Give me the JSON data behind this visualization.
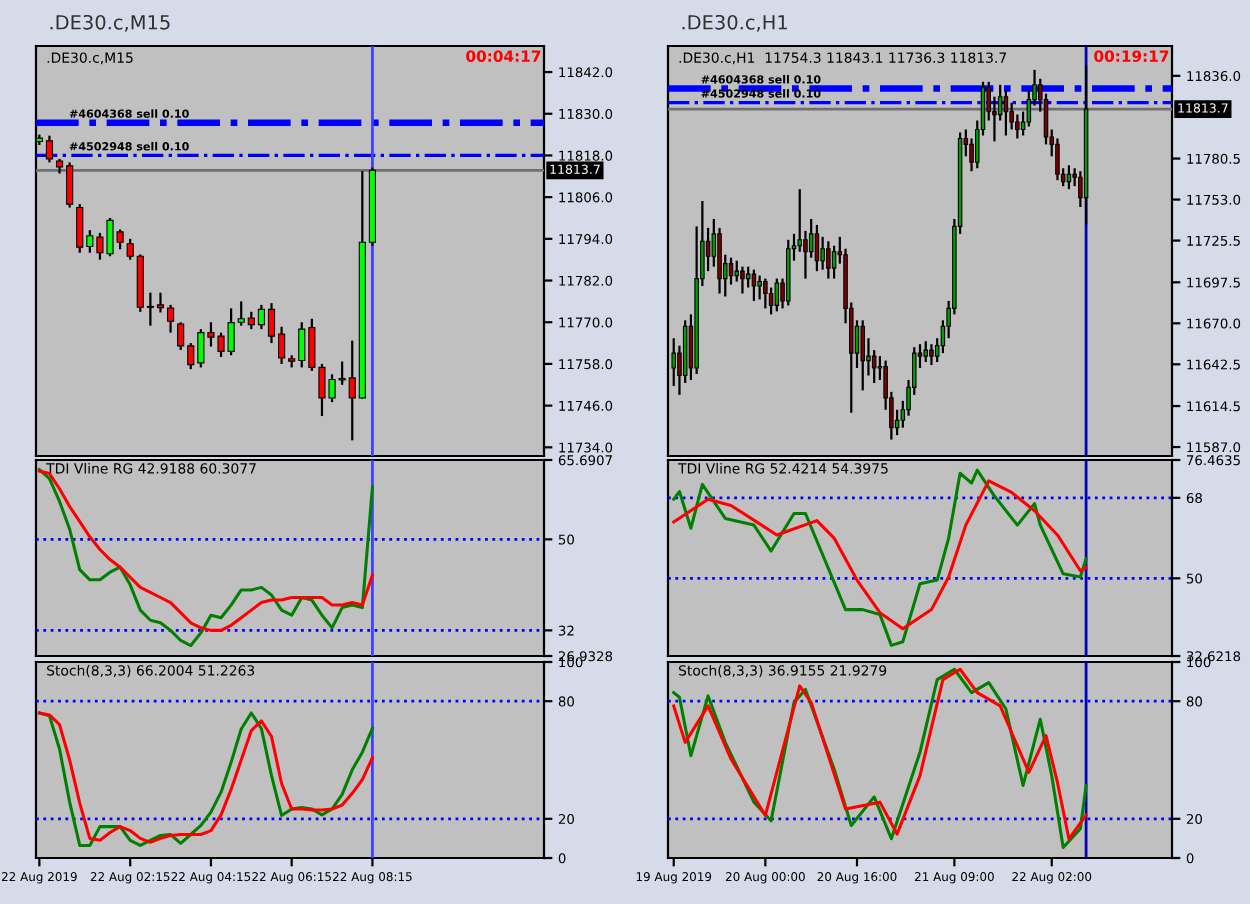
{
  "chart_data": [
    {
      "type": "candlestick",
      "title": ".DE30.c,M15",
      "subtitle": ".DE30.c,M15",
      "annotations": [
        "00:04:17"
      ],
      "x": [
        "2019-08-22T00:00",
        "2019-08-22T00:15",
        "2019-08-22T00:30",
        "2019-08-22T00:45",
        "2019-08-22T01:00",
        "2019-08-22T01:15",
        "2019-08-22T01:30",
        "2019-08-22T01:45",
        "2019-08-22T02:00",
        "2019-08-22T02:15",
        "2019-08-22T02:30",
        "2019-08-22T02:45",
        "2019-08-22T03:00",
        "2019-08-22T03:15",
        "2019-08-22T03:30",
        "2019-08-22T03:45",
        "2019-08-22T04:00",
        "2019-08-22T04:15",
        "2019-08-22T04:30",
        "2019-08-22T04:45",
        "2019-08-22T05:00",
        "2019-08-22T05:15",
        "2019-08-22T05:30",
        "2019-08-22T05:45",
        "2019-08-22T06:00",
        "2019-08-22T06:15",
        "2019-08-22T06:30",
        "2019-08-22T06:45",
        "2019-08-22T07:00",
        "2019-08-22T07:15",
        "2019-08-22T07:30",
        "2019-08-22T07:45",
        "2019-08-22T08:00",
        "2019-08-22T08:15"
      ],
      "ohlc": [
        [
          11822,
          11824,
          11821,
          11823
        ],
        [
          11822.2,
          11823.7,
          11816,
          11817
        ],
        [
          11816.4,
          11817,
          11812.8,
          11814.7
        ],
        [
          11815,
          11816,
          11803,
          11804
        ],
        [
          11803,
          11804,
          11790,
          11791.6
        ],
        [
          11791.8,
          11796.5,
          11790,
          11794.9
        ],
        [
          11794.5,
          11795.7,
          11788,
          11790
        ],
        [
          11789.7,
          11800,
          11789,
          11799.3
        ],
        [
          11796,
          11796.7,
          11791,
          11793
        ],
        [
          11792.6,
          11794,
          11788,
          11789
        ],
        [
          11789,
          11789.5,
          11773,
          11774.3
        ],
        [
          11774.3,
          11778.5,
          11769,
          11774.3
        ],
        [
          11775,
          11778.5,
          11772.8,
          11774.2
        ],
        [
          11774.1,
          11775,
          11767,
          11770.3
        ],
        [
          11769.5,
          11770,
          11762,
          11763.2
        ],
        [
          11763.2,
          11764,
          11756.5,
          11757.8
        ],
        [
          11758.3,
          11768,
          11757,
          11767
        ],
        [
          11767,
          11770,
          11763,
          11765.7
        ],
        [
          11766,
          11767,
          11760,
          11761.6
        ],
        [
          11761.6,
          11774,
          11760.5,
          11769.9
        ],
        [
          11770,
          11776,
          11769,
          11771
        ],
        [
          11771.2,
          11773,
          11768,
          11769.3
        ],
        [
          11769.3,
          11775,
          11768,
          11773.7
        ],
        [
          11773.7,
          11775.5,
          11764,
          11766
        ],
        [
          11766.6,
          11768.7,
          11758,
          11759.7
        ],
        [
          11759.5,
          11760.5,
          11757,
          11758.8
        ],
        [
          11759,
          11770,
          11757,
          11768
        ],
        [
          11768.5,
          11771,
          11756,
          11757
        ],
        [
          11757,
          11758,
          11743,
          11748.2
        ],
        [
          11748.2,
          11755,
          11747,
          11753.5
        ],
        [
          11753.4,
          11758.7,
          11752,
          11753.8
        ],
        [
          11754,
          11764.7,
          11736,
          11748.2
        ],
        [
          11748.2,
          11813.5,
          11748,
          11793
        ],
        [
          11793,
          11814.5,
          11792,
          11813.7
        ]
      ],
      "xlim": [
        "2019-08-21T23:55",
        "2019-08-22T12:30"
      ],
      "ylim": [
        11731.5,
        11849.5
      ],
      "yticks": [
        {
          "value": 11734,
          "label": "11734.0"
        },
        {
          "value": 11746,
          "label": "11746.0"
        },
        {
          "value": 11758,
          "label": "11758.0"
        },
        {
          "value": 11770,
          "label": "11770.0"
        },
        {
          "value": 11782,
          "label": "11782.0"
        },
        {
          "value": 11794,
          "label": "11794.0"
        },
        {
          "value": 11806,
          "label": "11806.0"
        },
        {
          "value": 11818,
          "label": "11818.0"
        },
        {
          "value": 11830,
          "label": "11830.0"
        },
        {
          "value": 11842,
          "label": "11842.0"
        }
      ],
      "ref_lines": [
        {
          "axis": "y",
          "value": 11827.4,
          "label": "#4604368 sell 0.10",
          "color": "#0000ff",
          "line_style": "dashdot"
        },
        {
          "axis": "y",
          "value": 11818.0,
          "label": "#4502948 sell 0.10",
          "color": "#0000ff",
          "line_style": "dashdot"
        },
        {
          "axis": "y",
          "value": 11813.7,
          "label": "11813.7",
          "color": "#707070",
          "line_style": "solid"
        },
        {
          "axis": "x",
          "value": "2019-08-22T08:15",
          "color": "#4040ff",
          "line_style": "solid"
        }
      ],
      "tick_labels": "y"
    },
    {
      "type": "line",
      "title": "TDI Vline RG 42.9188 60.3077",
      "x": [
        "2019-08-22T00:00",
        "2019-08-22T00:15",
        "2019-08-22T00:30",
        "2019-08-22T00:45",
        "2019-08-22T01:00",
        "2019-08-22T01:15",
        "2019-08-22T01:30",
        "2019-08-22T01:45",
        "2019-08-22T02:00",
        "2019-08-22T02:15",
        "2019-08-22T02:30",
        "2019-08-22T02:45",
        "2019-08-22T03:00",
        "2019-08-22T03:15",
        "2019-08-22T03:30",
        "2019-08-22T03:45",
        "2019-08-22T04:00",
        "2019-08-22T04:15",
        "2019-08-22T04:30",
        "2019-08-22T04:45",
        "2019-08-22T05:00",
        "2019-08-22T05:15",
        "2019-08-22T05:30",
        "2019-08-22T05:45",
        "2019-08-22T06:00",
        "2019-08-22T06:15",
        "2019-08-22T06:30",
        "2019-08-22T06:45",
        "2019-08-22T07:00",
        "2019-08-22T07:15",
        "2019-08-22T07:30",
        "2019-08-22T07:45",
        "2019-08-22T08:00",
        "2019-08-22T08:15"
      ],
      "series": [
        {
          "color": "#008000",
          "values": [
            63.8,
            62,
            57.5,
            52,
            44,
            42,
            42,
            43.5,
            44.5,
            41,
            36,
            34,
            33.5,
            32,
            30,
            29,
            31.5,
            35,
            34.5,
            37,
            40,
            40,
            40.5,
            39,
            36,
            35,
            38.5,
            38,
            35,
            32.5,
            36.5,
            37,
            36.5,
            60.3
          ]
        },
        {
          "color": "#ff0000",
          "values": [
            63.5,
            63,
            60,
            56.5,
            53.5,
            50.5,
            48,
            46,
            44.5,
            42.5,
            40.5,
            39.5,
            38.5,
            37.5,
            35.5,
            33.5,
            32.5,
            32,
            32,
            33,
            34.5,
            36,
            37.5,
            38,
            38,
            38.5,
            38.5,
            38.5,
            38.5,
            37,
            37,
            37.5,
            37,
            42.9
          ]
        }
      ],
      "xlim": [
        "2019-08-21T23:55",
        "2019-08-22T12:30"
      ],
      "ylim": [
        26.9328,
        65.6907
      ],
      "yticks": [
        26.9328,
        32,
        50,
        65.6907
      ],
      "ref_lines": [
        {
          "axis": "y",
          "value": 50,
          "color": "#0000ff",
          "line_style": "dotted"
        },
        {
          "axis": "y",
          "value": 32,
          "color": "#0000ff",
          "line_style": "dotted"
        },
        {
          "axis": "x",
          "value": "2019-08-22T08:15",
          "color": "#4040ff",
          "line_style": "solid"
        }
      ],
      "tick_labels": "y"
    },
    {
      "type": "line",
      "title": "Stoch(8,3,3) 66.2004 51.2263",
      "x": [
        "2019-08-22T00:00",
        "2019-08-22T00:15",
        "2019-08-22T00:30",
        "2019-08-22T00:45",
        "2019-08-22T01:00",
        "2019-08-22T01:15",
        "2019-08-22T01:30",
        "2019-08-22T01:45",
        "2019-08-22T02:00",
        "2019-08-22T02:15",
        "2019-08-22T02:30",
        "2019-08-22T02:45",
        "2019-08-22T03:00",
        "2019-08-22T03:15",
        "2019-08-22T03:30",
        "2019-08-22T03:45",
        "2019-08-22T04:00",
        "2019-08-22T04:15",
        "2019-08-22T04:30",
        "2019-08-22T04:45",
        "2019-08-22T05:00",
        "2019-08-22T05:15",
        "2019-08-22T05:30",
        "2019-08-22T05:45",
        "2019-08-22T06:00",
        "2019-08-22T06:15",
        "2019-08-22T06:30",
        "2019-08-22T06:45",
        "2019-08-22T07:00",
        "2019-08-22T07:15",
        "2019-08-22T07:30",
        "2019-08-22T07:45",
        "2019-08-22T08:00",
        "2019-08-22T08:15"
      ],
      "series": [
        {
          "color": "#008000",
          "values": [
            74,
            72.5,
            55.6,
            28.5,
            6.4,
            6.4,
            16,
            16,
            16,
            9,
            6.4,
            9,
            11.5,
            12,
            7.5,
            12,
            16.6,
            23.4,
            33.6,
            48.8,
            65.8,
            74,
            66,
            42,
            21.7,
            25,
            25.8,
            25,
            22,
            25,
            32.5,
            45,
            54,
            66.2
          ]
        },
        {
          "color": "#ff0000",
          "values": [
            74,
            73,
            68,
            50,
            28,
            10,
            9,
            13,
            16,
            14,
            10,
            8,
            10,
            11.5,
            12,
            12,
            12,
            14,
            22,
            35,
            50,
            65,
            70,
            62,
            38,
            25,
            25,
            24.5,
            24.5,
            25,
            27,
            33,
            40,
            51.2
          ]
        }
      ],
      "xlim": [
        "2019-08-21T23:55",
        "2019-08-22T12:30"
      ],
      "ylim": [
        0,
        100
      ],
      "yticks": [
        0,
        20,
        80,
        100
      ],
      "xticks": [
        {
          "value": "2019-08-22T00:00",
          "label": "22 Aug 2019"
        },
        {
          "value": "2019-08-22T02:15",
          "label": "22 Aug 02:15"
        },
        {
          "value": "2019-08-22T04:15",
          "label": "22 Aug 04:15"
        },
        {
          "value": "2019-08-22T06:15",
          "label": "22 Aug 06:15"
        },
        {
          "value": "2019-08-22T08:15",
          "label": "22 Aug 08:15"
        }
      ],
      "ref_lines": [
        {
          "axis": "y",
          "value": 80,
          "color": "#0000ff",
          "line_style": "dotted"
        },
        {
          "axis": "y",
          "value": 20,
          "color": "#0000ff",
          "line_style": "dotted"
        },
        {
          "axis": "x",
          "value": "2019-08-22T08:15",
          "color": "#4040ff",
          "line_style": "solid"
        }
      ]
    },
    {
      "type": "candlestick",
      "title": ".DE30.c,H1",
      "subtitle": ".DE30.c,H1  11754.3 11843.1 11736.3 11813.7",
      "annotations": [
        "00:19:17"
      ],
      "x": [
        "2019-08-19T08:00",
        "2019-08-19T09:00",
        "2019-08-19T10:00",
        "2019-08-19T11:00",
        "2019-08-19T12:00",
        "2019-08-19T13:00",
        "2019-08-19T14:00",
        "2019-08-19T15:00",
        "2019-08-19T16:00",
        "2019-08-19T17:00",
        "2019-08-19T18:00",
        "2019-08-19T19:00",
        "2019-08-19T20:00",
        "2019-08-19T21:00",
        "2019-08-19T22:00",
        "2019-08-19T23:00",
        "2019-08-20T00:00",
        "2019-08-20T01:00",
        "2019-08-20T02:00",
        "2019-08-20T03:00",
        "2019-08-20T04:00",
        "2019-08-20T05:00",
        "2019-08-20T06:00",
        "2019-08-20T07:00",
        "2019-08-20T08:00",
        "2019-08-20T09:00",
        "2019-08-20T10:00",
        "2019-08-20T11:00",
        "2019-08-20T12:00",
        "2019-08-20T13:00",
        "2019-08-20T14:00",
        "2019-08-20T15:00",
        "2019-08-20T16:00",
        "2019-08-20T17:00",
        "2019-08-20T18:00",
        "2019-08-20T19:00",
        "2019-08-20T20:00",
        "2019-08-20T21:00",
        "2019-08-20T22:00",
        "2019-08-20T23:00",
        "2019-08-21T00:00",
        "2019-08-21T01:00",
        "2019-08-21T02:00",
        "2019-08-21T03:00",
        "2019-08-21T04:00",
        "2019-08-21T05:00",
        "2019-08-21T06:00",
        "2019-08-21T07:00",
        "2019-08-21T08:00",
        "2019-08-21T09:00",
        "2019-08-21T10:00",
        "2019-08-21T11:00",
        "2019-08-21T12:00",
        "2019-08-21T13:00",
        "2019-08-21T14:00",
        "2019-08-21T15:00",
        "2019-08-21T16:00",
        "2019-08-21T17:00",
        "2019-08-21T18:00",
        "2019-08-21T19:00",
        "2019-08-21T20:00",
        "2019-08-21T21:00",
        "2019-08-21T22:00",
        "2019-08-21T23:00",
        "2019-08-22T00:00",
        "2019-08-22T01:00",
        "2019-08-22T02:00",
        "2019-08-22T03:00",
        "2019-08-22T04:00",
        "2019-08-22T05:00",
        "2019-08-22T06:00",
        "2019-08-22T07:00",
        "2019-08-22T08:00"
      ],
      "ohlc": [
        [
          11640,
          11660,
          11628,
          11650
        ],
        [
          11650,
          11655,
          11622,
          11635
        ],
        [
          11635,
          11672,
          11630,
          11668
        ],
        [
          11668,
          11676,
          11632,
          11640
        ],
        [
          11640,
          11735,
          11636,
          11700
        ],
        [
          11700,
          11752,
          11695,
          11725
        ],
        [
          11725,
          11734,
          11705,
          11715
        ],
        [
          11715,
          11740,
          11708,
          11730
        ],
        [
          11730,
          11734,
          11690,
          11700
        ],
        [
          11700,
          11716,
          11688,
          11710
        ],
        [
          11710,
          11714,
          11696,
          11702
        ],
        [
          11702,
          11712,
          11698,
          11705
        ],
        [
          11705,
          11708,
          11690,
          11700
        ],
        [
          11700,
          11708,
          11694,
          11703
        ],
        [
          11703,
          11706,
          11685,
          11695
        ],
        [
          11695,
          11702,
          11686,
          11698
        ],
        [
          11698,
          11700,
          11680,
          11690
        ],
        [
          11690,
          11694,
          11676,
          11682
        ],
        [
          11682,
          11700,
          11678,
          11697
        ],
        [
          11697,
          11700,
          11680,
          11685
        ],
        [
          11685,
          11726,
          11682,
          11720
        ],
        [
          11720,
          11730,
          11712,
          11722
        ],
        [
          11722,
          11760,
          11718,
          11726
        ],
        [
          11726,
          11732,
          11700,
          11718
        ],
        [
          11718,
          11740,
          11714,
          11730
        ],
        [
          11730,
          11736,
          11705,
          11712
        ],
        [
          11712,
          11728,
          11706,
          11720
        ],
        [
          11720,
          11725,
          11700,
          11707
        ],
        [
          11707,
          11722,
          11700,
          11718
        ],
        [
          11718,
          11728,
          11710,
          11716
        ],
        [
          11716,
          11720,
          11670,
          11680
        ],
        [
          11680,
          11684,
          11610,
          11650
        ],
        [
          11650,
          11672,
          11640,
          11668
        ],
        [
          11668,
          11672,
          11625,
          11645
        ],
        [
          11645,
          11660,
          11635,
          11648
        ],
        [
          11648,
          11652,
          11630,
          11640
        ],
        [
          11640,
          11648,
          11632,
          11641
        ],
        [
          11641,
          11645,
          11612,
          11620
        ],
        [
          11620,
          11624,
          11592,
          11600
        ],
        [
          11600,
          11612,
          11595,
          11605
        ],
        [
          11605,
          11618,
          11600,
          11612
        ],
        [
          11612,
          11632,
          11608,
          11627
        ],
        [
          11627,
          11654,
          11622,
          11650
        ],
        [
          11650,
          11656,
          11640,
          11648
        ],
        [
          11648,
          11658,
          11644,
          11652
        ],
        [
          11652,
          11656,
          11642,
          11648
        ],
        [
          11648,
          11660,
          11644,
          11655
        ],
        [
          11655,
          11672,
          11650,
          11668
        ],
        [
          11668,
          11685,
          11660,
          11680
        ],
        [
          11680,
          11740,
          11676,
          11735
        ],
        [
          11735,
          11798,
          11730,
          11794
        ],
        [
          11794,
          11800,
          11782,
          11790
        ],
        [
          11790,
          11794,
          11772,
          11778
        ],
        [
          11778,
          11806,
          11774,
          11800
        ],
        [
          11800,
          11832,
          11796,
          11828
        ],
        [
          11828,
          11832,
          11806,
          11812
        ],
        [
          11812,
          11822,
          11792,
          11810
        ],
        [
          11810,
          11830,
          11806,
          11822
        ],
        [
          11822,
          11826,
          11796,
          11812
        ],
        [
          11812,
          11818,
          11800,
          11805
        ],
        [
          11805,
          11810,
          11794,
          11800
        ],
        [
          11800,
          11812,
          11796,
          11805
        ],
        [
          11805,
          11826,
          11802,
          11820
        ],
        [
          11820,
          11840,
          11816,
          11830
        ],
        [
          11830,
          11834,
          11812,
          11820
        ],
        [
          11820,
          11824,
          11790,
          11795
        ],
        [
          11795,
          11800,
          11782,
          11790
        ],
        [
          11790,
          11794,
          11766,
          11770
        ],
        [
          11770,
          11774,
          11762,
          11765
        ],
        [
          11765,
          11776,
          11760,
          11770
        ],
        [
          11770,
          11774,
          11762,
          11768
        ],
        [
          11768,
          11772,
          11748,
          11754.3
        ],
        [
          11754.3,
          11843.1,
          11736.3,
          11813.7
        ]
      ],
      "xlim": [
        "2019-08-19T07:00",
        "2019-08-22T23:00"
      ],
      "ylim": [
        11581,
        11856
      ],
      "yticks": [
        {
          "value": 11587,
          "label": "11587.0"
        },
        11614.5,
        11642.5,
        {
          "value": 11670,
          "label": "11670.0"
        },
        11697.5,
        11725.5,
        {
          "value": 11753,
          "label": "11753.0"
        },
        11780.5,
        {
          "value": 11836,
          "label": "11836.0"
        }
      ],
      "ref_lines": [
        {
          "axis": "y",
          "value": 11827.5,
          "label": "#4604368 sell 0.10",
          "color": "#0000ff",
          "line_style": "dashdot"
        },
        {
          "axis": "y",
          "value": 11818.0,
          "label": "#4502948 sell 0.10",
          "color": "#0000ff",
          "line_style": "dashdot"
        },
        {
          "axis": "y",
          "value": 11813.7,
          "label": "11813.7",
          "color": "#707070",
          "line_style": "solid"
        },
        {
          "axis": "x",
          "value": "2019-08-22T08:00",
          "color": "#0000c0",
          "line_style": "solid"
        }
      ],
      "tick_labels": "y"
    },
    {
      "type": "line",
      "title": "TDI Vline RG 52.4214 54.3975",
      "series": [
        {
          "color": "#008000",
          "x": [
            "2019-08-19T08:00",
            "2019-08-19T09:00",
            "2019-08-19T11:00",
            "2019-08-19T13:00",
            "2019-08-19T17:00",
            "2019-08-19T22:00",
            "2019-08-20T01:00",
            "2019-08-20T05:00",
            "2019-08-20T07:00",
            "2019-08-20T14:00",
            "2019-08-20T17:00",
            "2019-08-20T20:00",
            "2019-08-20T22:00",
            "2019-08-21T00:00",
            "2019-08-21T03:00",
            "2019-08-21T06:00",
            "2019-08-21T08:00",
            "2019-08-21T10:00",
            "2019-08-21T12:00",
            "2019-08-21T13:00",
            "2019-08-21T16:00",
            "2019-08-21T20:00",
            "2019-08-21T23:00",
            "2019-08-22T00:00",
            "2019-08-22T04:00",
            "2019-08-22T07:00",
            "2019-08-22T08:00"
          ],
          "values": [
            67.7,
            69.4,
            61.2,
            71,
            63.4,
            61.9,
            56.1,
            64.5,
            64.5,
            43,
            43,
            41.9,
            35,
            35.8,
            48.8,
            49.6,
            59,
            73.5,
            71.3,
            74.2,
            68.4,
            61.9,
            66.7,
            61.9,
            51,
            50.3,
            54.4
          ]
        },
        {
          "color": "#ff0000",
          "x": [
            "2019-08-19T08:00",
            "2019-08-19T14:00",
            "2019-08-19T18:00",
            "2019-08-20T02:00",
            "2019-08-20T09:00",
            "2019-08-20T12:00",
            "2019-08-20T16:00",
            "2019-08-20T20:00",
            "2019-08-21T00:00",
            "2019-08-21T05:00",
            "2019-08-21T08:00",
            "2019-08-21T11:00",
            "2019-08-21T15:00",
            "2019-08-21T19:00",
            "2019-08-21T23:00",
            "2019-08-22T03:00",
            "2019-08-22T07:00",
            "2019-08-22T08:00"
          ],
          "values": [
            62.6,
            67.7,
            66.3,
            59.7,
            62.9,
            59,
            49.6,
            42.3,
            38.7,
            43,
            50.3,
            61.9,
            71.8,
            69.2,
            65.1,
            59.7,
            51.7,
            52.4
          ]
        }
      ],
      "xlim": [
        "2019-08-19T07:00",
        "2019-08-22T23:00"
      ],
      "ylim": [
        32.6218,
        76.4635
      ],
      "yticks": [
        32.6218,
        50,
        68,
        76.4635
      ],
      "ref_lines": [
        {
          "axis": "y",
          "value": 68,
          "color": "#0000ff",
          "line_style": "dotted"
        },
        {
          "axis": "y",
          "value": 50,
          "color": "#0000ff",
          "line_style": "dotted"
        },
        {
          "axis": "x",
          "value": "2019-08-22T08:00",
          "color": "#0000c0",
          "line_style": "solid"
        }
      ],
      "tick_labels": "y"
    },
    {
      "type": "line",
      "title": "Stoch(8,3,3) 36.9155 21.9279",
      "series": [
        {
          "color": "#008000",
          "x": [
            "2019-08-19T08:00",
            "2019-08-19T09:00",
            "2019-08-19T11:00",
            "2019-08-19T14:00",
            "2019-08-19T17:00",
            "2019-08-19T22:00",
            "2019-08-20T01:00",
            "2019-08-20T05:00",
            "2019-08-20T07:00",
            "2019-08-20T12:00",
            "2019-08-20T15:00",
            "2019-08-20T19:00",
            "2019-08-20T22:00",
            "2019-08-21T03:00",
            "2019-08-21T06:00",
            "2019-08-21T09:00",
            "2019-08-21T12:00",
            "2019-08-21T15:00",
            "2019-08-21T18:00",
            "2019-08-21T21:00",
            "2019-08-22T00:00",
            "2019-08-22T02:00",
            "2019-08-22T04:00",
            "2019-08-22T07:00",
            "2019-08-22T08:00"
          ],
          "values": [
            84.4,
            82,
            52.2,
            82.7,
            59,
            28.5,
            19,
            79.3,
            86,
            45.4,
            16.6,
            31.2,
            9.8,
            54,
            91,
            96.3,
            84.4,
            89.5,
            76,
            37,
            70.8,
            42,
            5.4,
            14.9,
            36.9
          ]
        },
        {
          "color": "#ff0000",
          "x": [
            "2019-08-19T08:00",
            "2019-08-19T10:00",
            "2019-08-19T14:00",
            "2019-08-19T18:00",
            "2019-08-20T00:00",
            "2019-08-20T06:00",
            "2019-08-20T08:00",
            "2019-08-20T14:00",
            "2019-08-20T20:00",
            "2019-08-20T23:00",
            "2019-08-21T03:00",
            "2019-08-21T07:00",
            "2019-08-21T10:00",
            "2019-08-21T13:00",
            "2019-08-21T17:00",
            "2019-08-21T22:00",
            "2019-08-22T01:00",
            "2019-08-22T03:00",
            "2019-08-22T05:00",
            "2019-08-22T08:00"
          ],
          "values": [
            77.6,
            59,
            77.6,
            50.5,
            21.7,
            87.8,
            79.3,
            25,
            28.5,
            12.2,
            42,
            91,
            96.3,
            84.4,
            77.6,
            43.7,
            62.4,
            38.6,
            9.8,
            21.9
          ]
        }
      ],
      "xlim": [
        "2019-08-19T07:00",
        "2019-08-22T23:00"
      ],
      "ylim": [
        0,
        100
      ],
      "yticks": [
        0,
        20,
        80,
        100
      ],
      "xticks": [
        {
          "value": "2019-08-19T08:00",
          "label": "19 Aug 2019"
        },
        {
          "value": "2019-08-20T00:00",
          "label": "20 Aug 00:00"
        },
        {
          "value": "2019-08-20T16:00",
          "label": "20 Aug 16:00"
        },
        {
          "value": "2019-08-21T09:00",
          "label": "21 Aug 09:00"
        },
        {
          "value": "2019-08-22T02:00",
          "label": "22 Aug 02:00"
        }
      ],
      "ref_lines": [
        {
          "axis": "y",
          "value": 80,
          "color": "#0000ff",
          "line_style": "dotted"
        },
        {
          "axis": "y",
          "value": 20,
          "color": "#0000ff",
          "line_style": "dotted"
        },
        {
          "axis": "x",
          "value": "2019-08-22T08:00",
          "color": "#0000c0",
          "line_style": "solid"
        }
      ]
    }
  ]
}
